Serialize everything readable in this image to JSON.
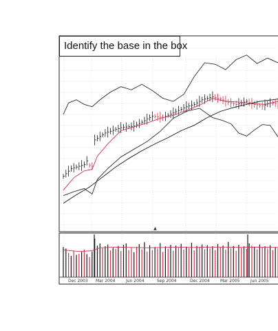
{
  "chart_data": {
    "type": "line",
    "title": "Identify the base in the box",
    "x_ticks": [
      "Dec 2003",
      "Mar 2004",
      "Jun 2004",
      "Sep 2004",
      "Dec 2004",
      "Mar 2005",
      "Jun 2005"
    ],
    "grid": true,
    "colors": {
      "up_bar": "#111111",
      "down_bar": "#d0304a",
      "ma_short": "#d0304a",
      "ma_long": "#111111",
      "grid": "#c8c8c8"
    },
    "price": {
      "weeks": 83,
      "close_index": [
        [
          0,
          20
        ],
        [
          3,
          30
        ],
        [
          8,
          35
        ],
        [
          9,
          40
        ],
        [
          10,
          34
        ],
        [
          11,
          33
        ],
        [
          12,
          67
        ],
        [
          16,
          76
        ],
        [
          22,
          83
        ],
        [
          27,
          85
        ],
        [
          30,
          90
        ],
        [
          34,
          98
        ],
        [
          38,
          96
        ],
        [
          42,
          102
        ],
        [
          47,
          110
        ],
        [
          50,
          113
        ],
        [
          53,
          119
        ],
        [
          57,
          123
        ],
        [
          60,
          120
        ],
        [
          63,
          116
        ],
        [
          66,
          113
        ],
        [
          70,
          117
        ],
        [
          73,
          113
        ],
        [
          76,
          111
        ],
        [
          79,
          115
        ],
        [
          82,
          114
        ]
      ],
      "ma_short_index": [
        [
          0,
          2
        ],
        [
          4,
          18
        ],
        [
          8,
          27
        ],
        [
          11,
          29
        ],
        [
          13,
          46
        ],
        [
          17,
          62
        ],
        [
          22,
          79
        ],
        [
          27,
          84
        ],
        [
          32,
          89
        ],
        [
          37,
          95
        ],
        [
          42,
          99
        ],
        [
          47,
          105
        ],
        [
          52,
          112
        ],
        [
          57,
          121
        ],
        [
          62,
          117
        ],
        [
          67,
          116
        ],
        [
          72,
          114
        ],
        [
          77,
          113
        ],
        [
          82,
          117
        ]
      ],
      "ma_long_index": [
        [
          0,
          -15
        ],
        [
          5,
          -4
        ],
        [
          10,
          6
        ],
        [
          15,
          19
        ],
        [
          20,
          32
        ],
        [
          25,
          43
        ],
        [
          30,
          53
        ],
        [
          35,
          62
        ],
        [
          40,
          70
        ],
        [
          45,
          79
        ],
        [
          50,
          86
        ],
        [
          55,
          96
        ],
        [
          60,
          104
        ],
        [
          65,
          109
        ],
        [
          70,
          113
        ],
        [
          75,
          117
        ],
        [
          80,
          119
        ],
        [
          82,
          120
        ]
      ],
      "relative_strength_index": [
        [
          0,
          100
        ],
        [
          2,
          115
        ],
        [
          5,
          119
        ],
        [
          8,
          113
        ],
        [
          11,
          110
        ],
        [
          14,
          119
        ],
        [
          18,
          129
        ],
        [
          22,
          136
        ],
        [
          26,
          132
        ],
        [
          30,
          139
        ],
        [
          34,
          131
        ],
        [
          38,
          121
        ],
        [
          42,
          117
        ],
        [
          46,
          126
        ],
        [
          50,
          149
        ],
        [
          54,
          167
        ],
        [
          58,
          165
        ],
        [
          62,
          158
        ],
        [
          66,
          171
        ],
        [
          70,
          177
        ],
        [
          74,
          166
        ],
        [
          78,
          173
        ],
        [
          82,
          167
        ]
      ],
      "lower_band_index": [
        [
          0,
          -5
        ],
        [
          4,
          0
        ],
        [
          8,
          4
        ],
        [
          11,
          -3
        ],
        [
          13,
          16
        ],
        [
          17,
          30
        ],
        [
          22,
          45
        ],
        [
          27,
          55
        ],
        [
          32,
          65
        ],
        [
          37,
          78
        ],
        [
          42,
          95
        ],
        [
          47,
          104
        ],
        [
          52,
          108
        ],
        [
          57,
          96
        ],
        [
          61,
          92
        ],
        [
          64,
          88
        ],
        [
          67,
          76
        ],
        [
          70,
          72
        ],
        [
          73,
          80
        ],
        [
          76,
          87
        ],
        [
          79,
          86
        ],
        [
          82,
          71
        ]
      ]
    },
    "volume": {
      "bars": [
        {
          "w": 0,
          "v": 0.82,
          "up": true
        },
        {
          "w": 1,
          "v": 0.78,
          "up": true
        },
        {
          "w": 2,
          "v": 0.66,
          "up": false
        },
        {
          "w": 3,
          "v": 0.58,
          "up": true
        },
        {
          "w": 4,
          "v": 0.72,
          "up": false
        },
        {
          "w": 5,
          "v": 0.61,
          "up": true
        },
        {
          "w": 6,
          "v": 0.64,
          "up": false
        },
        {
          "w": 7,
          "v": 0.69,
          "up": true
        },
        {
          "w": 8,
          "v": 0.75,
          "up": false
        },
        {
          "w": 9,
          "v": 0.63,
          "up": true
        },
        {
          "w": 10,
          "v": 0.55,
          "up": false
        },
        {
          "w": 11,
          "v": 0.7,
          "up": true
        },
        {
          "w": 12,
          "v": 1.05,
          "up": true
        },
        {
          "w": 13,
          "v": 0.86,
          "up": true
        },
        {
          "w": 14,
          "v": 0.92,
          "up": true
        },
        {
          "w": 15,
          "v": 0.79,
          "up": false
        },
        {
          "w": 16,
          "v": 0.84,
          "up": true
        },
        {
          "w": 17,
          "v": 0.89,
          "up": true
        },
        {
          "w": 18,
          "v": 0.73,
          "up": false
        },
        {
          "w": 19,
          "v": 0.8,
          "up": true
        },
        {
          "w": 20,
          "v": 0.77,
          "up": false
        },
        {
          "w": 21,
          "v": 0.85,
          "up": true
        },
        {
          "w": 22,
          "v": 0.71,
          "up": false
        },
        {
          "w": 23,
          "v": 0.88,
          "up": true
        },
        {
          "w": 24,
          "v": 0.92,
          "up": true
        },
        {
          "w": 25,
          "v": 0.74,
          "up": false
        },
        {
          "w": 26,
          "v": 0.8,
          "up": false
        },
        {
          "w": 27,
          "v": 0.68,
          "up": true
        },
        {
          "w": 28,
          "v": 0.83,
          "up": false
        },
        {
          "w": 29,
          "v": 0.9,
          "up": true
        },
        {
          "w": 30,
          "v": 0.76,
          "up": false
        },
        {
          "w": 31,
          "v": 0.95,
          "up": true
        },
        {
          "w": 32,
          "v": 0.7,
          "up": false
        },
        {
          "w": 33,
          "v": 0.87,
          "up": true
        },
        {
          "w": 34,
          "v": 0.74,
          "up": false
        },
        {
          "w": 35,
          "v": 0.82,
          "up": true
        },
        {
          "w": 36,
          "v": 0.78,
          "up": false
        },
        {
          "w": 37,
          "v": 0.93,
          "up": true
        },
        {
          "w": 38,
          "v": 0.69,
          "up": false
        },
        {
          "w": 39,
          "v": 0.84,
          "up": true
        },
        {
          "w": 40,
          "v": 0.77,
          "up": false
        },
        {
          "w": 41,
          "v": 0.88,
          "up": true
        },
        {
          "w": 42,
          "v": 0.72,
          "up": false
        },
        {
          "w": 43,
          "v": 0.86,
          "up": true
        },
        {
          "w": 44,
          "v": 0.8,
          "up": false
        },
        {
          "w": 45,
          "v": 0.91,
          "up": true
        },
        {
          "w": 46,
          "v": 0.75,
          "up": false
        },
        {
          "w": 47,
          "v": 0.83,
          "up": true
        },
        {
          "w": 48,
          "v": 0.79,
          "up": false
        },
        {
          "w": 49,
          "v": 0.94,
          "up": true
        },
        {
          "w": 50,
          "v": 0.73,
          "up": false
        },
        {
          "w": 51,
          "v": 0.85,
          "up": true
        },
        {
          "w": 52,
          "v": 0.82,
          "up": false
        },
        {
          "w": 53,
          "v": 0.89,
          "up": true
        },
        {
          "w": 54,
          "v": 0.76,
          "up": false
        },
        {
          "w": 55,
          "v": 0.87,
          "up": true
        },
        {
          "w": 56,
          "v": 0.78,
          "up": false
        },
        {
          "w": 57,
          "v": 0.84,
          "up": true
        },
        {
          "w": 58,
          "v": 0.74,
          "up": false
        },
        {
          "w": 59,
          "v": 0.9,
          "up": true
        },
        {
          "w": 60,
          "v": 0.81,
          "up": false
        },
        {
          "w": 61,
          "v": 0.86,
          "up": true
        },
        {
          "w": 62,
          "v": 0.75,
          "up": false
        },
        {
          "w": 63,
          "v": 0.96,
          "up": true
        },
        {
          "w": 64,
          "v": 0.79,
          "up": false
        },
        {
          "w": 65,
          "v": 0.85,
          "up": true
        },
        {
          "w": 66,
          "v": 0.72,
          "up": false
        },
        {
          "w": 67,
          "v": 0.88,
          "up": true
        },
        {
          "w": 68,
          "v": 0.8,
          "up": false
        },
        {
          "w": 69,
          "v": 0.84,
          "up": true
        },
        {
          "w": 70,
          "v": 0.77,
          "up": false
        },
        {
          "w": 71,
          "v": 0.92,
          "up": true
        },
        {
          "w": 72,
          "v": 0.86,
          "up": false
        },
        {
          "w": 73,
          "v": 0.83,
          "up": true
        },
        {
          "w": 74,
          "v": 0.76,
          "up": false
        },
        {
          "w": 75,
          "v": 0.89,
          "up": true
        },
        {
          "w": 76,
          "v": 0.81,
          "up": false
        },
        {
          "w": 77,
          "v": 0.84,
          "up": true
        },
        {
          "w": 78,
          "v": 0.78,
          "up": false
        },
        {
          "w": 79,
          "v": 0.87,
          "up": true
        },
        {
          "w": 80,
          "v": 0.74,
          "up": false
        },
        {
          "w": 81,
          "v": 0.82,
          "up": true
        },
        {
          "w": 82,
          "v": 0.79,
          "up": false
        }
      ],
      "moving_average": [
        [
          0,
          0.74
        ],
        [
          6,
          0.7
        ],
        [
          11,
          0.72
        ],
        [
          14,
          0.8
        ],
        [
          20,
          0.82
        ],
        [
          26,
          0.81
        ],
        [
          32,
          0.8
        ],
        [
          38,
          0.81
        ],
        [
          44,
          0.82
        ],
        [
          50,
          0.81
        ],
        [
          56,
          0.82
        ],
        [
          62,
          0.82
        ],
        [
          68,
          0.81
        ],
        [
          74,
          0.82
        ],
        [
          82,
          0.81
        ]
      ]
    }
  }
}
